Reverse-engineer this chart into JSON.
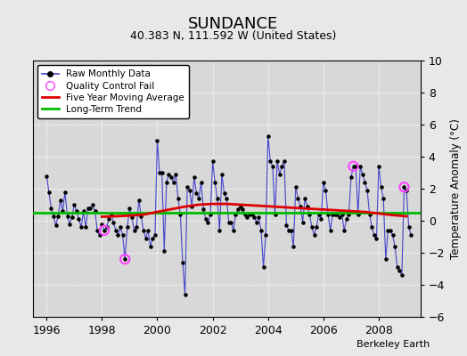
{
  "title": "SUNDANCE",
  "subtitle": "40.383 N, 111.592 W (United States)",
  "ylabel": "Temperature Anomaly (°C)",
  "attribution": "Berkeley Earth",
  "xlim": [
    1995.5,
    2009.5
  ],
  "ylim": [
    -6,
    10
  ],
  "yticks": [
    -6,
    -4,
    -2,
    0,
    2,
    4,
    6,
    8,
    10
  ],
  "xticks": [
    1996,
    1998,
    2000,
    2002,
    2004,
    2006,
    2008
  ],
  "background_color": "#e8e8e8",
  "plot_bg_color": "#d8d8d8",
  "raw_color": "#4444cc",
  "dot_color": "#000000",
  "moving_avg_color": "#dd0000",
  "trend_color": "#00bb00",
  "qc_fail_color": "#ff44ff",
  "trend_value": 0.5,
  "raw_data": [
    [
      1996.0,
      2.8
    ],
    [
      1996.083,
      1.8
    ],
    [
      1996.167,
      0.8
    ],
    [
      1996.25,
      0.3
    ],
    [
      1996.333,
      -0.3
    ],
    [
      1996.417,
      0.3
    ],
    [
      1996.5,
      1.3
    ],
    [
      1996.583,
      0.6
    ],
    [
      1996.667,
      1.8
    ],
    [
      1996.75,
      0.3
    ],
    [
      1996.833,
      -0.2
    ],
    [
      1996.917,
      0.2
    ],
    [
      1997.0,
      1.0
    ],
    [
      1997.083,
      0.6
    ],
    [
      1997.167,
      0.1
    ],
    [
      1997.25,
      -0.4
    ],
    [
      1997.333,
      0.6
    ],
    [
      1997.417,
      -0.4
    ],
    [
      1997.5,
      0.8
    ],
    [
      1997.583,
      0.8
    ],
    [
      1997.667,
      1.0
    ],
    [
      1997.75,
      0.6
    ],
    [
      1997.833,
      -0.6
    ],
    [
      1997.917,
      -0.9
    ],
    [
      1998.0,
      -0.2
    ],
    [
      1998.083,
      -0.6
    ],
    [
      1998.167,
      -0.4
    ],
    [
      1998.25,
      0.1
    ],
    [
      1998.333,
      0.4
    ],
    [
      1998.417,
      -0.1
    ],
    [
      1998.5,
      -0.6
    ],
    [
      1998.583,
      -0.9
    ],
    [
      1998.667,
      -0.4
    ],
    [
      1998.75,
      -0.9
    ],
    [
      1998.833,
      -2.4
    ],
    [
      1998.917,
      -0.4
    ],
    [
      1999.0,
      0.8
    ],
    [
      1999.083,
      0.2
    ],
    [
      1999.167,
      -0.6
    ],
    [
      1999.25,
      -0.4
    ],
    [
      1999.333,
      1.3
    ],
    [
      1999.417,
      0.3
    ],
    [
      1999.5,
      -0.6
    ],
    [
      1999.583,
      -1.1
    ],
    [
      1999.667,
      -0.6
    ],
    [
      1999.75,
      -1.6
    ],
    [
      1999.833,
      -1.1
    ],
    [
      1999.917,
      -0.9
    ],
    [
      2000.0,
      5.0
    ],
    [
      2000.083,
      3.0
    ],
    [
      2000.167,
      3.0
    ],
    [
      2000.25,
      -1.9
    ],
    [
      2000.333,
      2.4
    ],
    [
      2000.417,
      2.9
    ],
    [
      2000.5,
      2.7
    ],
    [
      2000.583,
      2.4
    ],
    [
      2000.667,
      2.9
    ],
    [
      2000.75,
      1.4
    ],
    [
      2000.833,
      0.4
    ],
    [
      2000.917,
      -2.6
    ],
    [
      2001.0,
      -4.6
    ],
    [
      2001.083,
      2.1
    ],
    [
      2001.167,
      1.9
    ],
    [
      2001.25,
      0.9
    ],
    [
      2001.333,
      2.7
    ],
    [
      2001.417,
      1.7
    ],
    [
      2001.5,
      1.4
    ],
    [
      2001.583,
      2.4
    ],
    [
      2001.667,
      0.7
    ],
    [
      2001.75,
      0.1
    ],
    [
      2001.833,
      -0.1
    ],
    [
      2001.917,
      0.4
    ],
    [
      2002.0,
      3.7
    ],
    [
      2002.083,
      2.4
    ],
    [
      2002.167,
      1.4
    ],
    [
      2002.25,
      -0.6
    ],
    [
      2002.333,
      2.9
    ],
    [
      2002.417,
      1.7
    ],
    [
      2002.5,
      1.4
    ],
    [
      2002.583,
      -0.1
    ],
    [
      2002.667,
      -0.1
    ],
    [
      2002.75,
      -0.6
    ],
    [
      2002.833,
      0.4
    ],
    [
      2002.917,
      0.7
    ],
    [
      2003.0,
      0.9
    ],
    [
      2003.083,
      0.7
    ],
    [
      2003.167,
      0.4
    ],
    [
      2003.25,
      0.2
    ],
    [
      2003.333,
      0.4
    ],
    [
      2003.417,
      0.4
    ],
    [
      2003.5,
      0.2
    ],
    [
      2003.583,
      -0.1
    ],
    [
      2003.667,
      0.2
    ],
    [
      2003.75,
      -0.6
    ],
    [
      2003.833,
      -2.9
    ],
    [
      2003.917,
      -0.9
    ],
    [
      2004.0,
      5.3
    ],
    [
      2004.083,
      3.7
    ],
    [
      2004.167,
      3.4
    ],
    [
      2004.25,
      0.4
    ],
    [
      2004.333,
      3.7
    ],
    [
      2004.417,
      2.9
    ],
    [
      2004.5,
      3.4
    ],
    [
      2004.583,
      3.7
    ],
    [
      2004.667,
      -0.3
    ],
    [
      2004.75,
      -0.6
    ],
    [
      2004.833,
      -0.6
    ],
    [
      2004.917,
      -1.6
    ],
    [
      2005.0,
      2.1
    ],
    [
      2005.083,
      1.4
    ],
    [
      2005.167,
      0.9
    ],
    [
      2005.25,
      -0.1
    ],
    [
      2005.333,
      1.4
    ],
    [
      2005.417,
      0.9
    ],
    [
      2005.5,
      0.4
    ],
    [
      2005.583,
      -0.4
    ],
    [
      2005.667,
      -0.9
    ],
    [
      2005.75,
      -0.4
    ],
    [
      2005.833,
      0.4
    ],
    [
      2005.917,
      0.1
    ],
    [
      2006.0,
      2.4
    ],
    [
      2006.083,
      1.9
    ],
    [
      2006.167,
      0.4
    ],
    [
      2006.25,
      -0.6
    ],
    [
      2006.333,
      0.4
    ],
    [
      2006.417,
      0.4
    ],
    [
      2006.5,
      0.4
    ],
    [
      2006.583,
      0.2
    ],
    [
      2006.667,
      0.4
    ],
    [
      2006.75,
      -0.6
    ],
    [
      2006.833,
      0.1
    ],
    [
      2006.917,
      0.4
    ],
    [
      2007.0,
      2.7
    ],
    [
      2007.083,
      3.4
    ],
    [
      2007.167,
      3.4
    ],
    [
      2007.25,
      0.4
    ],
    [
      2007.333,
      3.4
    ],
    [
      2007.417,
      2.9
    ],
    [
      2007.5,
      2.4
    ],
    [
      2007.583,
      1.9
    ],
    [
      2007.667,
      0.4
    ],
    [
      2007.75,
      -0.4
    ],
    [
      2007.833,
      -0.9
    ],
    [
      2007.917,
      -1.1
    ],
    [
      2008.0,
      3.4
    ],
    [
      2008.083,
      2.1
    ],
    [
      2008.167,
      1.4
    ],
    [
      2008.25,
      -2.4
    ],
    [
      2008.333,
      -0.6
    ],
    [
      2008.417,
      -0.6
    ],
    [
      2008.5,
      -0.9
    ],
    [
      2008.583,
      -1.6
    ],
    [
      2008.667,
      -2.9
    ],
    [
      2008.75,
      -3.1
    ],
    [
      2008.833,
      -3.4
    ],
    [
      2008.917,
      2.1
    ],
    [
      2009.0,
      1.9
    ],
    [
      2009.083,
      -0.4
    ],
    [
      2009.167,
      -0.9
    ]
  ],
  "moving_avg": [
    [
      1998.0,
      0.25
    ],
    [
      1998.5,
      0.28
    ],
    [
      1999.0,
      0.32
    ],
    [
      1999.5,
      0.38
    ],
    [
      2000.0,
      0.55
    ],
    [
      2000.5,
      0.72
    ],
    [
      2001.0,
      0.88
    ],
    [
      2001.5,
      1.0
    ],
    [
      2002.0,
      1.05
    ],
    [
      2002.5,
      1.05
    ],
    [
      2003.0,
      1.0
    ],
    [
      2003.5,
      0.95
    ],
    [
      2004.0,
      0.9
    ],
    [
      2004.5,
      0.85
    ],
    [
      2005.0,
      0.8
    ],
    [
      2005.5,
      0.75
    ],
    [
      2006.0,
      0.7
    ],
    [
      2006.5,
      0.65
    ],
    [
      2007.0,
      0.6
    ],
    [
      2007.5,
      0.55
    ],
    [
      2008.0,
      0.45
    ],
    [
      2008.5,
      0.35
    ],
    [
      2009.0,
      0.28
    ]
  ],
  "qc_fail_points": [
    [
      1998.083,
      -0.6
    ],
    [
      1998.833,
      -2.4
    ],
    [
      2007.083,
      3.4
    ],
    [
      2008.917,
      2.1
    ]
  ]
}
